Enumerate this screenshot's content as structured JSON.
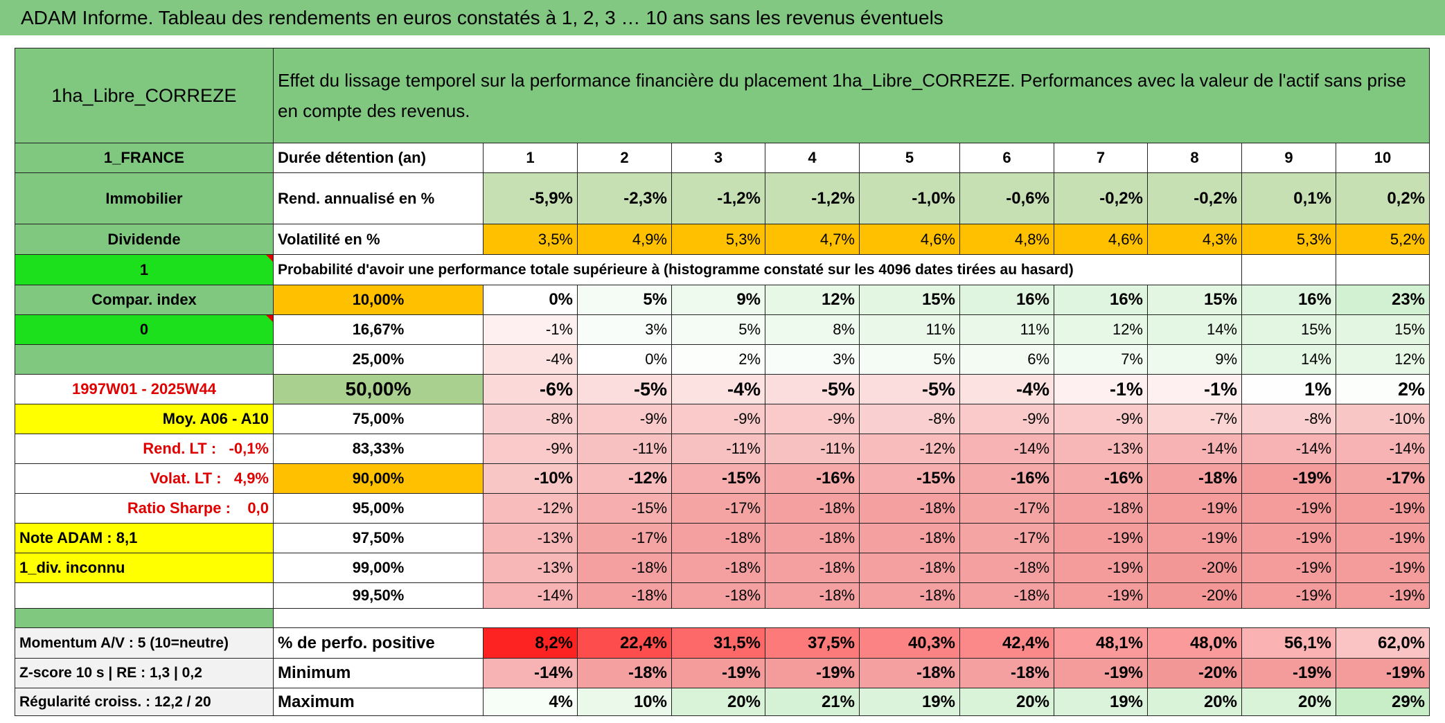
{
  "header": {
    "title": "ADAM Informe. Tableau des rendements en euros constatés à 1, 2, 3 … 10 ans sans les revenus éventuels"
  },
  "table": {
    "corner": "1ha_Libre_CORREZE",
    "description": "Effet du lissage temporel sur la performance financière du placement 1ha_Libre_CORREZE. Performances avec la valeur de l'actif sans prise en compte des revenus.",
    "rows": [
      {
        "label": "1_FRANCE",
        "caption": "Durée détention (an)",
        "cells": [
          "1",
          "2",
          "3",
          "4",
          "5",
          "6",
          "7",
          "8",
          "9",
          "10"
        ]
      },
      {
        "label": "Immobilier",
        "caption": "Rend. annualisé en %",
        "cells": [
          "-5,9%",
          "-2,3%",
          "-1,2%",
          "-1,2%",
          "-1,0%",
          "-0,6%",
          "-0,2%",
          "-0,2%",
          "0,1%",
          "0,2%"
        ]
      },
      {
        "label": "Dividende",
        "caption": "Volatilité en %",
        "cells": [
          "3,5%",
          "4,9%",
          "5,3%",
          "4,7%",
          "4,6%",
          "4,8%",
          "4,6%",
          "4,3%",
          "5,3%",
          "5,2%"
        ]
      },
      {
        "label": "1",
        "caption": "Probabilité d'avoir une performance totale supérieure à (histogramme constaté sur les 4096 dates tirées au hasard)"
      },
      {
        "label": "Compar. index",
        "caption": "10,00%",
        "cells": [
          "0%",
          "5%",
          "9%",
          "12%",
          "15%",
          "16%",
          "16%",
          "15%",
          "16%",
          "23%"
        ]
      },
      {
        "label": "0",
        "caption": "16,67%",
        "cells": [
          "-1%",
          "3%",
          "5%",
          "8%",
          "11%",
          "11%",
          "12%",
          "14%",
          "15%",
          "15%"
        ]
      },
      {
        "caption": "25,00%",
        "cells": [
          "-4%",
          "0%",
          "2%",
          "3%",
          "5%",
          "6%",
          "7%",
          "9%",
          "14%",
          "12%"
        ]
      },
      {
        "label": "1997W01 - 2025W44",
        "caption": "50,00%",
        "cells": [
          "-6%",
          "-5%",
          "-4%",
          "-5%",
          "-5%",
          "-4%",
          "-1%",
          "-1%",
          "1%",
          "2%"
        ]
      },
      {
        "label": "Moy. A06 - A10",
        "caption": "75,00%",
        "cells": [
          "-8%",
          "-9%",
          "-9%",
          "-9%",
          "-8%",
          "-9%",
          "-9%",
          "-7%",
          "-8%",
          "-10%"
        ]
      },
      {
        "label": "Rend. LT :   -0,1%",
        "caption": "83,33%",
        "cells": [
          "-9%",
          "-11%",
          "-11%",
          "-11%",
          "-12%",
          "-14%",
          "-13%",
          "-14%",
          "-14%",
          "-14%"
        ]
      },
      {
        "label": "Volat. LT :   4,9%",
        "caption": "90,00%",
        "cells": [
          "-10%",
          "-12%",
          "-15%",
          "-16%",
          "-15%",
          "-16%",
          "-16%",
          "-18%",
          "-19%",
          "-17%"
        ]
      },
      {
        "label": "Ratio Sharpe :    0,0",
        "caption": "95,00%",
        "cells": [
          "-12%",
          "-15%",
          "-17%",
          "-18%",
          "-18%",
          "-17%",
          "-18%",
          "-19%",
          "-19%",
          "-19%"
        ]
      },
      {
        "label": "Note ADAM : 8,1",
        "caption": "97,50%",
        "cells": [
          "-13%",
          "-17%",
          "-18%",
          "-18%",
          "-18%",
          "-17%",
          "-19%",
          "-19%",
          "-19%",
          "-19%"
        ]
      },
      {
        "label": "1_div. inconnu",
        "caption": "99,00%",
        "cells": [
          "-13%",
          "-18%",
          "-18%",
          "-18%",
          "-18%",
          "-18%",
          "-19%",
          "-20%",
          "-19%",
          "-19%"
        ]
      },
      {
        "caption": "99,50%",
        "cells": [
          "-14%",
          "-18%",
          "-18%",
          "-18%",
          "-18%",
          "-18%",
          "-19%",
          "-20%",
          "-19%",
          "-19%"
        ]
      }
    ],
    "summary": [
      {
        "label": "Momentum A/V : 5 (10=neutre)",
        "caption": "% de perfo. positive",
        "cells": [
          "8,2%",
          "22,4%",
          "31,5%",
          "37,5%",
          "40,3%",
          "42,4%",
          "48,1%",
          "48,0%",
          "56,1%",
          "62,0%"
        ]
      },
      {
        "label": "Z-score 10 s | RE : 1,3 | 0,2",
        "caption": "Minimum",
        "cells": [
          "-14%",
          "-18%",
          "-19%",
          "-19%",
          "-18%",
          "-18%",
          "-19%",
          "-20%",
          "-19%",
          "-19%"
        ]
      },
      {
        "label": "Régularité croiss. : 12,2 / 20",
        "caption": "Maximum",
        "cells": [
          "4%",
          "10%",
          "20%",
          "21%",
          "19%",
          "20%",
          "19%",
          "20%",
          "20%",
          "29%"
        ]
      }
    ]
  }
}
